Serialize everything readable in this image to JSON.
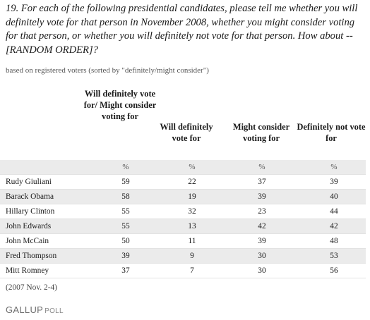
{
  "question": "19. For each of the following presidential candidates, please tell me whether you will definitely vote for that person in November 2008, whether you might consider voting for that person, or whether you will definitely not vote for that person. How about -- [RANDOM ORDER]?",
  "note": "based on registered voters (sorted by \"definitely/might consider\")",
  "headers": {
    "col1": "Will definitely vote for/ Might consider voting for",
    "col2": "Will definitely vote for",
    "col3": "Might consider voting for",
    "col4": "Definitely not vote for"
  },
  "unit_row": [
    "",
    "%",
    "%",
    "%",
    "%"
  ],
  "rows": [
    {
      "name": "Rudy Giuliani",
      "combined": "59",
      "definitely": "22",
      "might": "37",
      "not": "39"
    },
    {
      "name": "Barack Obama",
      "combined": "58",
      "definitely": "19",
      "might": "39",
      "not": "40"
    },
    {
      "name": "Hillary Clinton",
      "combined": "55",
      "definitely": "32",
      "might": "23",
      "not": "44"
    },
    {
      "name": "John Edwards",
      "combined": "55",
      "definitely": "13",
      "might": "42",
      "not": "42"
    },
    {
      "name": "John McCain",
      "combined": "50",
      "definitely": "11",
      "might": "39",
      "not": "48"
    },
    {
      "name": "Fred Thompson",
      "combined": "39",
      "definitely": "9",
      "might": "30",
      "not": "53"
    },
    {
      "name": "Mitt Romney",
      "combined": "37",
      "definitely": "7",
      "might": "30",
      "not": "56"
    }
  ],
  "date": "(2007 Nov. 2-4)",
  "logo": {
    "brand": "GALLUP",
    "suffix": "POLL"
  }
}
